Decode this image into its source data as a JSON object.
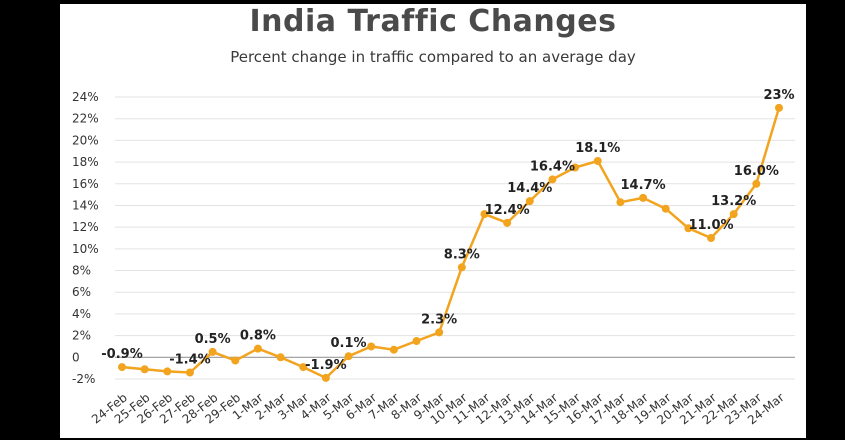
{
  "chart_data": {
    "type": "line",
    "title": "India Traffic Changes",
    "subtitle": "Percent change in traffic compared to an average day",
    "xlabel": "",
    "ylabel": "",
    "ylim": [
      -2,
      24
    ],
    "yticks": [
      -2,
      0,
      2,
      4,
      6,
      8,
      10,
      12,
      14,
      16,
      18,
      20,
      22,
      24
    ],
    "ytick_labels": [
      "-2%",
      "0",
      "2%",
      "4%",
      "6%",
      "8%",
      "10%",
      "12%",
      "14%",
      "16%",
      "18%",
      "20%",
      "22%",
      "24%"
    ],
    "grid": true,
    "legend": "none",
    "line_color": "#f2a41f",
    "categories": [
      "24-Feb",
      "25-Feb",
      "26-Feb",
      "27-Feb",
      "28-Feb",
      "29-Feb",
      "1-Mar",
      "2-Mar",
      "3-Mar",
      "4-Mar",
      "5-Mar",
      "6-Mar",
      "7-Mar",
      "8-Mar",
      "9-Mar",
      "10-Mar",
      "11-Mar",
      "12-Mar",
      "13-Mar",
      "14-Mar",
      "15-Mar",
      "16-Mar",
      "17-Mar",
      "18-Mar",
      "19-Mar",
      "20-Mar",
      "21-Mar",
      "22-Mar",
      "23-Mar",
      "24-Mar"
    ],
    "values": [
      -0.9,
      -1.1,
      -1.3,
      -1.4,
      0.5,
      -0.3,
      0.8,
      0.0,
      -0.9,
      -1.9,
      0.1,
      1.0,
      0.7,
      1.5,
      2.3,
      8.3,
      13.2,
      12.4,
      14.4,
      16.4,
      17.5,
      18.1,
      14.3,
      14.7,
      13.7,
      11.9,
      11.0,
      13.2,
      16.0,
      23.0
    ],
    "data_labels": [
      {
        "index": 0,
        "text": "-0.9%"
      },
      {
        "index": 3,
        "text": "-1.4%"
      },
      {
        "index": 4,
        "text": "0.5%"
      },
      {
        "index": 6,
        "text": "0.8%"
      },
      {
        "index": 9,
        "text": "-1.9%"
      },
      {
        "index": 10,
        "text": "0.1%"
      },
      {
        "index": 14,
        "text": "2.3%"
      },
      {
        "index": 15,
        "text": "8.3%"
      },
      {
        "index": 17,
        "text": "12.4%"
      },
      {
        "index": 18,
        "text": "14.4%"
      },
      {
        "index": 19,
        "text": "16.4%"
      },
      {
        "index": 21,
        "text": "18.1%"
      },
      {
        "index": 23,
        "text": "14.7%"
      },
      {
        "index": 26,
        "text": "11.0%"
      },
      {
        "index": 27,
        "text": "13.2%"
      },
      {
        "index": 28,
        "text": "16.0%"
      },
      {
        "index": 29,
        "text": "23%"
      }
    ]
  }
}
